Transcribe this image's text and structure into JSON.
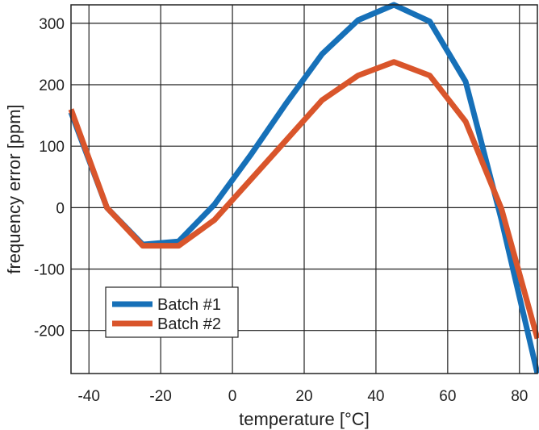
{
  "chart_data": {
    "type": "line",
    "xlabel": "temperature [°C]",
    "ylabel": "frequency error [ppm]",
    "xlim": [
      -45,
      85
    ],
    "ylim": [
      -270,
      330
    ],
    "x_ticks": [
      -40,
      -20,
      0,
      20,
      40,
      60,
      80
    ],
    "y_ticks": [
      -200,
      -100,
      0,
      100,
      200,
      300
    ],
    "x_tick_labels": [
      "-40",
      "-20",
      "0",
      "20",
      "40",
      "60",
      "80"
    ],
    "y_tick_labels": [
      "-200",
      "-100",
      "0",
      "100",
      "200",
      "300"
    ],
    "grid": true,
    "legend_position": "bottom-left",
    "series": [
      {
        "name": "Batch #1",
        "color": "#1670b8",
        "x": [
          -45,
          -35,
          -25,
          -15,
          -5,
          5,
          15,
          25,
          35,
          45,
          55,
          65,
          75,
          85
        ],
        "y": [
          155,
          0,
          -60,
          -55,
          5,
          85,
          170,
          250,
          305,
          330,
          303,
          205,
          -20,
          -270
        ]
      },
      {
        "name": "Batch #2",
        "color": "#d9552b",
        "x": [
          -45,
          -35,
          -25,
          -15,
          -5,
          5,
          15,
          25,
          35,
          45,
          55,
          65,
          75,
          85
        ],
        "y": [
          160,
          0,
          -62,
          -62,
          -20,
          45,
          110,
          175,
          215,
          237,
          215,
          140,
          -2,
          -213
        ]
      }
    ]
  }
}
